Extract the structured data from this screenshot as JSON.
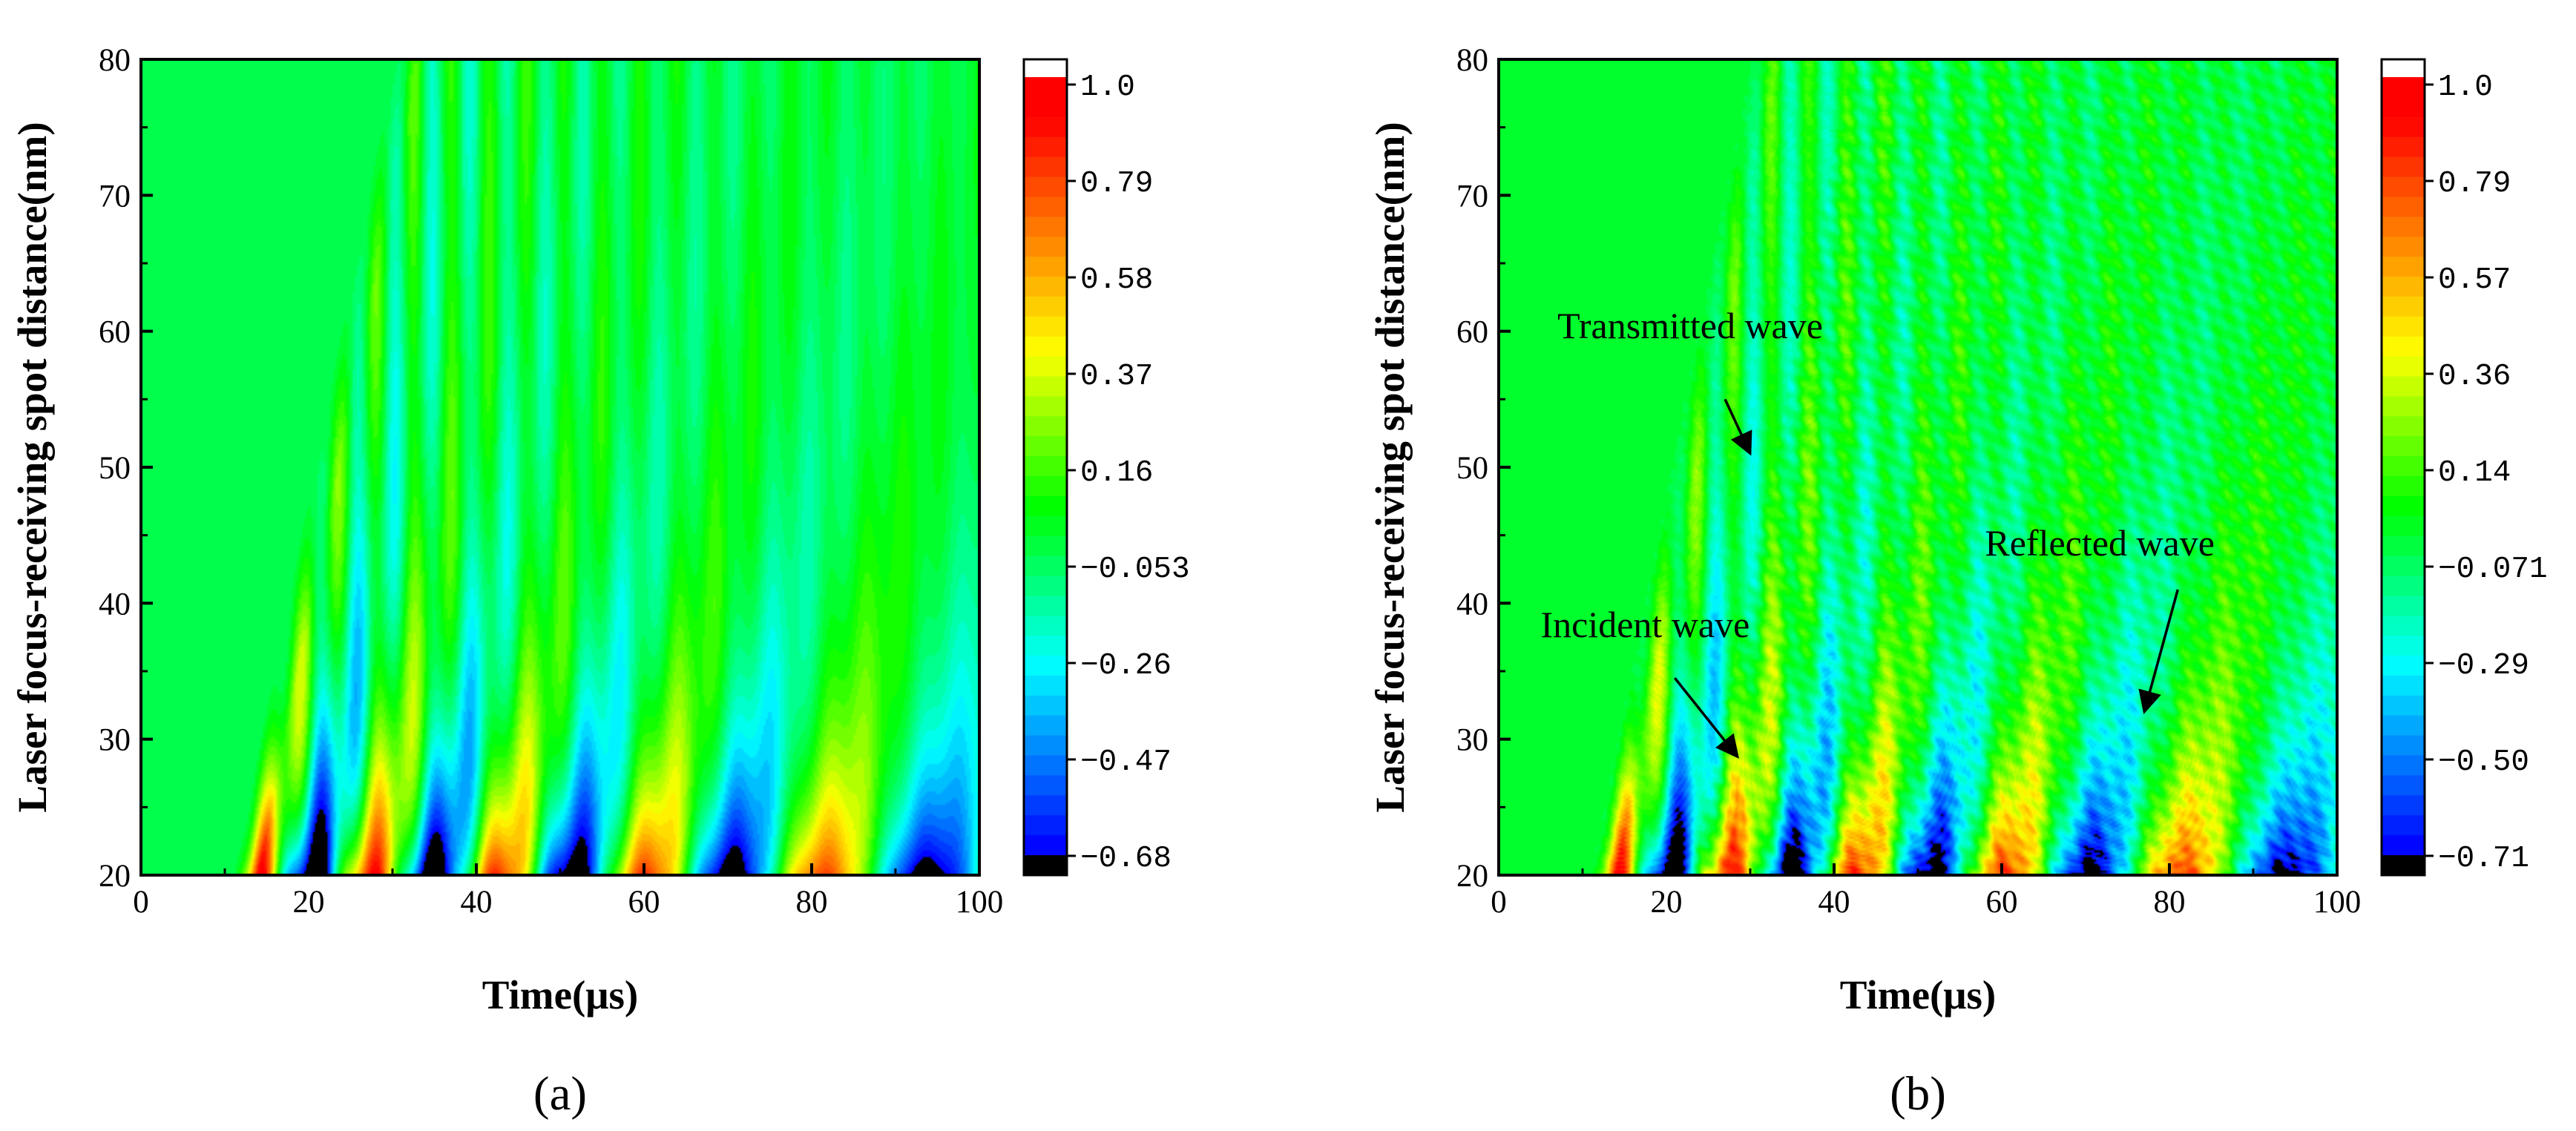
{
  "chart_data": [
    {
      "type": "heatmap",
      "panel": "(a)",
      "xlabel": "Time(μs)",
      "ylabel": "Laser focus-receiving spot distance(nm)",
      "xlim": [
        0,
        100
      ],
      "ylim": [
        20,
        80
      ],
      "xticks": [
        "0",
        "20",
        "40",
        "60",
        "80",
        "100"
      ],
      "yticks": [
        "20",
        "30",
        "40",
        "50",
        "60",
        "70",
        "80"
      ],
      "colorbar": {
        "ticks": [
          "1.0",
          "0.79",
          "0.58",
          "0.37",
          "0.16",
          "−0.053",
          "−0.26",
          "−0.47",
          "−0.68"
        ],
        "min": -0.68,
        "max": 1.0
      },
      "noise": false,
      "annotations": []
    },
    {
      "type": "heatmap",
      "panel": "(b)",
      "xlabel": "Time(μs)",
      "ylabel": "Laser focus-receiving spot distance(nm)",
      "xlim": [
        0,
        100
      ],
      "ylim": [
        20,
        80
      ],
      "xticks": [
        "0",
        "20",
        "40",
        "60",
        "80",
        "100"
      ],
      "yticks": [
        "20",
        "30",
        "40",
        "50",
        "60",
        "70",
        "80"
      ],
      "colorbar": {
        "ticks": [
          "1.0",
          "0.79",
          "0.57",
          "0.36",
          "0.14",
          "−0.071",
          "−0.29",
          "−0.50",
          "−0.71"
        ],
        "min": -0.71,
        "max": 1.0
      },
      "noise": true,
      "annotations": [
        {
          "text": "Transmitted wave",
          "text_at": [
            7,
            59.5
          ],
          "arrow_from": [
            27,
            55
          ],
          "arrow_to": [
            30,
            51
          ]
        },
        {
          "text": "Incident wave",
          "text_at": [
            5,
            37.5
          ],
          "arrow_from": [
            21,
            34.5
          ],
          "arrow_to": [
            28.5,
            28.7
          ]
        },
        {
          "text": "Reflected wave",
          "text_at": [
            58,
            43.5
          ],
          "arrow_from": [
            81,
            41
          ],
          "arrow_to": [
            77,
            32
          ]
        }
      ]
    }
  ],
  "colors": {
    "scale": [
      "#000000",
      "#0000ff",
      "#00ffff",
      "#00ff00",
      "#ffff00",
      "#ff0000"
    ],
    "axis": "#000000",
    "background": "#ffffff"
  }
}
